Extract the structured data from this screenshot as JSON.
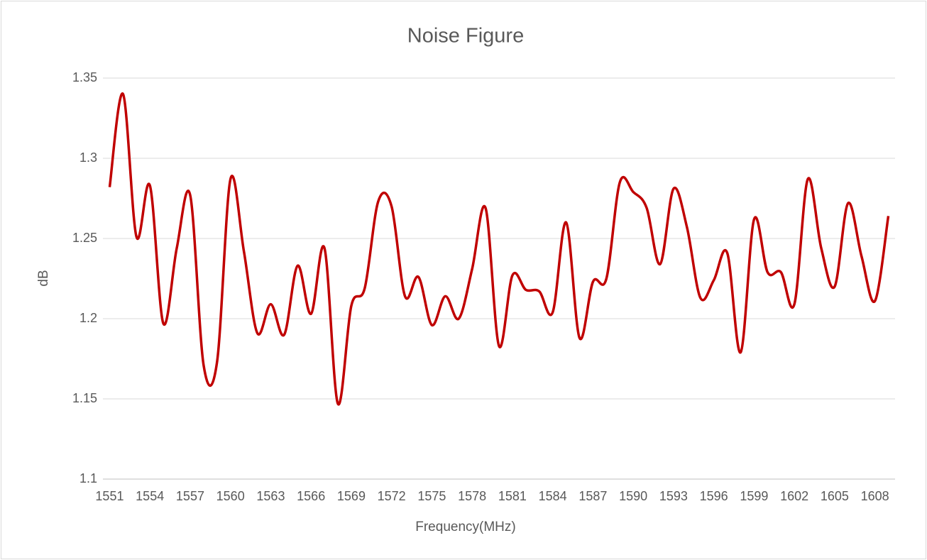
{
  "chart_data": {
    "type": "line",
    "title": "Noise Figure",
    "x_label": "Frequency(MHz)",
    "y_label": "dB",
    "x": [
      1551,
      1552,
      1553,
      1554,
      1555,
      1556,
      1557,
      1558,
      1559,
      1560,
      1561,
      1562,
      1563,
      1564,
      1565,
      1566,
      1567,
      1568,
      1569,
      1570,
      1571,
      1572,
      1573,
      1574,
      1575,
      1576,
      1577,
      1578,
      1579,
      1580,
      1581,
      1582,
      1583,
      1584,
      1585,
      1586,
      1587,
      1588,
      1589,
      1590,
      1591,
      1592,
      1593,
      1594,
      1595,
      1596,
      1597,
      1598,
      1599,
      1600,
      1601,
      1602,
      1603,
      1604,
      1605,
      1606,
      1607,
      1608,
      1609
    ],
    "series": [
      {
        "color": "#c00000",
        "values": [
          1.282,
          1.34,
          1.251,
          1.283,
          1.197,
          1.244,
          1.277,
          1.171,
          1.173,
          1.287,
          1.242,
          1.191,
          1.209,
          1.19,
          1.233,
          1.203,
          1.244,
          1.147,
          1.208,
          1.219,
          1.273,
          1.27,
          1.214,
          1.226,
          1.196,
          1.214,
          1.2,
          1.231,
          1.269,
          1.183,
          1.227,
          1.218,
          1.217,
          1.204,
          1.26,
          1.188,
          1.223,
          1.225,
          1.285,
          1.279,
          1.269,
          1.234,
          1.281,
          1.257,
          1.213,
          1.224,
          1.241,
          1.179,
          1.262,
          1.229,
          1.229,
          1.209,
          1.287,
          1.244,
          1.22,
          1.272,
          1.239,
          1.211,
          1.264
        ]
      }
    ],
    "xlim": [
      1550.5,
      1609.5
    ],
    "xticks": [
      1551,
      1554,
      1557,
      1560,
      1563,
      1566,
      1569,
      1572,
      1575,
      1578,
      1581,
      1584,
      1587,
      1590,
      1593,
      1596,
      1599,
      1602,
      1605,
      1608
    ],
    "ylim": [
      1.1,
      1.35
    ],
    "yticks": [
      1.1,
      1.15,
      1.2,
      1.25,
      1.3,
      1.35
    ],
    "grid": true,
    "smooth": true
  }
}
